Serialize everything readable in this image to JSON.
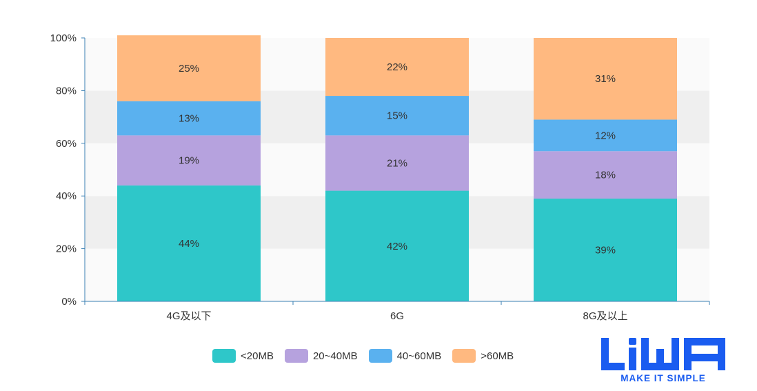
{
  "chart_data": {
    "type": "bar",
    "stacked": true,
    "categories": [
      "4G及以下",
      "6G",
      "8G及以上"
    ],
    "series": [
      {
        "name": "<20MB",
        "values": [
          44,
          42,
          39
        ],
        "color": "#2ec7c9"
      },
      {
        "name": "20~40MB",
        "values": [
          19,
          21,
          18
        ],
        "color": "#b6a2de"
      },
      {
        "name": "40~60MB",
        "values": [
          13,
          15,
          12
        ],
        "color": "#5ab1ef"
      },
      {
        "name": ">60MB",
        "values": [
          25,
          22,
          31
        ],
        "color": "#ffb980"
      }
    ],
    "yticks": [
      "0%",
      "20%",
      "40%",
      "60%",
      "80%",
      "100%"
    ],
    "ylim": [
      0,
      100
    ],
    "title": "",
    "xlabel": "",
    "ylabel": "",
    "legend_position": "bottom-center",
    "grid": "alternating-bands"
  },
  "logo": {
    "wordmark": "LiWA",
    "tagline": "MAKE IT SIMPLE",
    "color": "#1a5cf0"
  },
  "colors": {
    "axis": "#3a7fb3",
    "band_light": "#fafafa",
    "band_dark": "#efefef",
    "text": "#333333"
  }
}
